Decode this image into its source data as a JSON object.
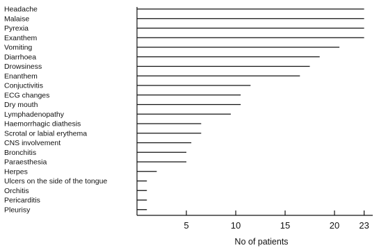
{
  "chart_data": {
    "type": "bar",
    "orientation": "horizontal",
    "categories": [
      "Headache",
      "Malaise",
      "Pyrexia",
      "Exanthem",
      "Vomiting",
      "Diarrhoea",
      "Drowsiness",
      "Enanthem",
      "Conjuctivitis",
      "ECG changes",
      "Dry mouth",
      "Lymphadenopathy",
      "Haemorrhagic diathesis",
      "Scrotal or labial erythema",
      "CNS involvement",
      "Bronchitis",
      "Paraesthesia",
      "Herpes",
      "Ulcers on the side of the tongue",
      "Orchitis",
      "Pericarditis",
      "Pleurisy"
    ],
    "values": [
      23,
      23,
      23,
      23,
      20.5,
      18.5,
      17.5,
      16.5,
      11.5,
      10.5,
      10.5,
      9.5,
      6.5,
      6.5,
      5.5,
      5,
      5,
      2,
      1,
      1,
      1,
      1
    ],
    "xticks": [
      "5",
      "10",
      "15",
      "20",
      "23"
    ],
    "xtick_values": [
      5,
      10,
      15,
      20,
      23
    ],
    "xlim": [
      0,
      24
    ],
    "xlabel": "No of patients",
    "title": "",
    "grid": false
  }
}
